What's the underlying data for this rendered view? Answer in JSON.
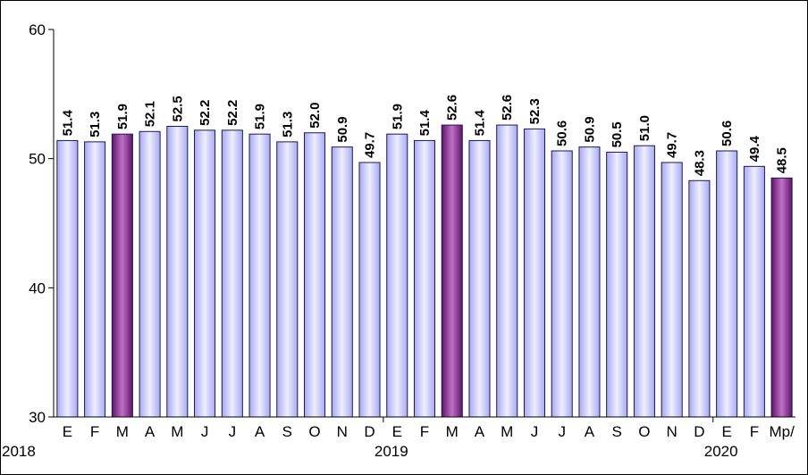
{
  "chart_data": {
    "type": "bar",
    "categories": [
      "E",
      "F",
      "M",
      "A",
      "M",
      "J",
      "J",
      "A",
      "S",
      "O",
      "N",
      "D",
      "E",
      "F",
      "M",
      "A",
      "M",
      "J",
      "J",
      "A",
      "S",
      "O",
      "N",
      "D",
      "E",
      "F",
      "Mp/"
    ],
    "year_labels": [
      {
        "label": "2018",
        "index": 0
      },
      {
        "label": "2019",
        "index": 12
      },
      {
        "label": "2020",
        "index": 24
      }
    ],
    "values": [
      51.4,
      51.3,
      51.9,
      52.1,
      52.5,
      52.2,
      52.2,
      51.9,
      51.3,
      52.0,
      50.9,
      49.7,
      51.9,
      51.4,
      52.6,
      51.4,
      52.6,
      52.3,
      50.6,
      50.9,
      50.5,
      51.0,
      49.7,
      48.3,
      50.6,
      49.4,
      48.5
    ],
    "value_labels": [
      "51.4",
      "51.3",
      "51.9",
      "52.1",
      "52.5",
      "52.2",
      "52.2",
      "51.9",
      "51.3",
      "52.0",
      "50.9",
      "49.7",
      "51.9",
      "51.4",
      "52.6",
      "51.4",
      "52.6",
      "52.3",
      "50.6",
      "50.9",
      "50.5",
      "51.0",
      "49.7",
      "48.3",
      "50.6",
      "49.4",
      "48.5"
    ],
    "highlight_indices": [
      2,
      14,
      26
    ],
    "ylim": [
      30,
      60
    ],
    "yticks": [
      30,
      40,
      50,
      60
    ],
    "grid": false,
    "legend": "none",
    "colors": {
      "bar_light": "#ccccff",
      "bar_edge": "#9999ee",
      "bar_highlight": "#7a2b82",
      "bar_highlight_light": "#c070c8",
      "bar_border": "#1a1a4d",
      "axis": "#000000"
    }
  }
}
